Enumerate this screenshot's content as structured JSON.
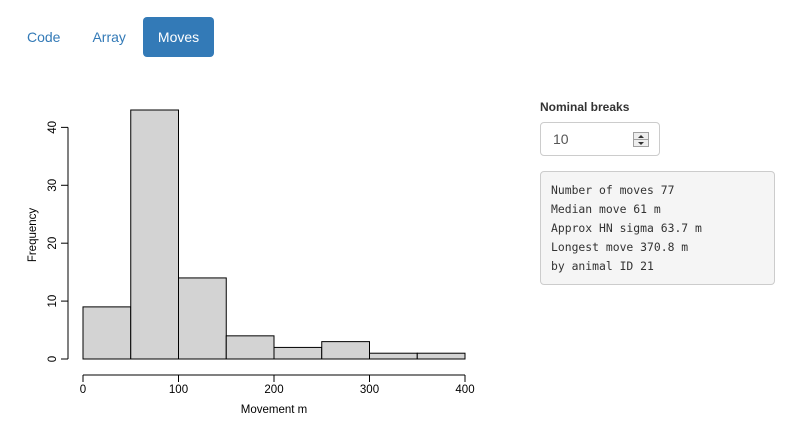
{
  "tabs": [
    {
      "label": "Code",
      "active": false
    },
    {
      "label": "Array",
      "active": false
    },
    {
      "label": "Moves",
      "active": true
    }
  ],
  "controls": {
    "nominal_breaks_label": "Nominal breaks",
    "nominal_breaks_value": "10"
  },
  "summary_lines": [
    "Number of moves 77",
    "Median move 61 m",
    "Approx HN sigma 63.7 m",
    "Longest move 370.8 m",
    "by animal ID 21"
  ],
  "colors": {
    "accent": "#337ab7",
    "bar_fill": "#d3d3d3",
    "summary_bg": "#f5f5f5"
  },
  "chart_data": {
    "type": "bar",
    "title": "",
    "xlabel": "Movement  m",
    "ylabel": "Frequency",
    "bins": [
      {
        "from": 0,
        "to": 50,
        "count": 9
      },
      {
        "from": 50,
        "to": 100,
        "count": 43
      },
      {
        "from": 100,
        "to": 150,
        "count": 14
      },
      {
        "from": 150,
        "to": 200,
        "count": 4
      },
      {
        "from": 200,
        "to": 250,
        "count": 2
      },
      {
        "from": 250,
        "to": 300,
        "count": 3
      },
      {
        "from": 300,
        "to": 350,
        "count": 1
      },
      {
        "from": 350,
        "to": 400,
        "count": 1
      }
    ],
    "xlim": [
      0,
      400
    ],
    "ylim": [
      0,
      43
    ],
    "xticks": [
      0,
      100,
      200,
      300,
      400
    ],
    "yticks": [
      0,
      10,
      20,
      30,
      40
    ],
    "grid": false
  }
}
